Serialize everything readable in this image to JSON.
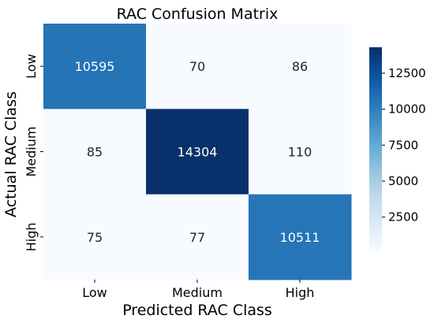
{
  "chart_data": {
    "type": "heatmap",
    "title": "RAC Confusion Matrix",
    "xlabel": "Predicted RAC Class",
    "ylabel": "Actual RAC Class",
    "x_categories": [
      "Low",
      "Medium",
      "High"
    ],
    "y_categories": [
      "Low",
      "Medium",
      "High"
    ],
    "values": [
      [
        10595,
        70,
        86
      ],
      [
        85,
        14304,
        110
      ],
      [
        75,
        77,
        10511
      ]
    ],
    "colorbar": {
      "min": 70,
      "max": 14304,
      "ticks": [
        2500,
        5000,
        7500,
        10000,
        12500
      ],
      "colormap": "Blues"
    }
  }
}
